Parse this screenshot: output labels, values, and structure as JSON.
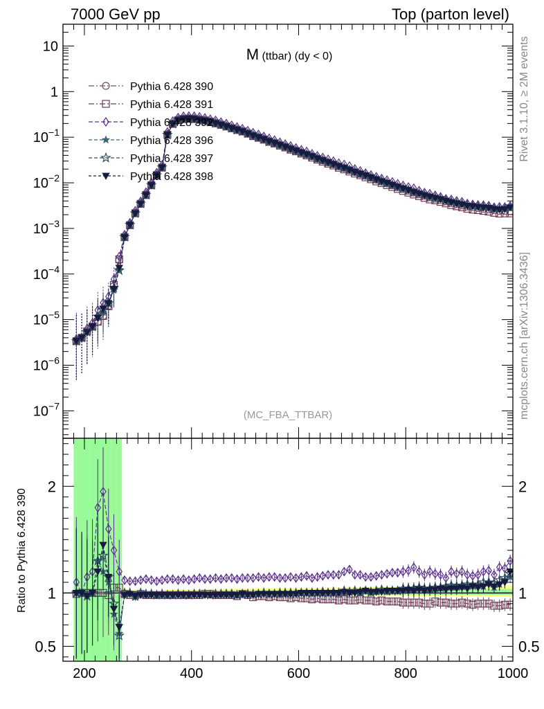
{
  "header": {
    "left": "7000 GeV pp",
    "right": "Top (parton level)"
  },
  "side": {
    "rivet": "Rivet 3.1.10, ≥ 2M events",
    "mcplots": "mcplots.cern.ch [arXiv:1306.3436]"
  },
  "chart_data": [
    {
      "type": "line",
      "title": "M (ttbar) (dy < 0)",
      "analysis": "(MC_FBA_TTBAR)",
      "yscale": "log",
      "xlim": [
        160,
        1000
      ],
      "ylim": [
        2.5e-08,
        30
      ],
      "x_ticks": [
        "200",
        "400",
        "600",
        "800",
        "1000"
      ],
      "y_ticks": [
        {
          "v": 10,
          "m": "10",
          "e": ""
        },
        {
          "v": 1,
          "m": "1",
          "e": ""
        },
        {
          "v": 0.1,
          "m": "10",
          "e": "−1"
        },
        {
          "v": 0.01,
          "m": "10",
          "e": "−2"
        },
        {
          "v": 0.001,
          "m": "10",
          "e": "−3"
        },
        {
          "v": 0.0001,
          "m": "10",
          "e": "−4"
        },
        {
          "v": 1e-05,
          "m": "10",
          "e": "−5"
        },
        {
          "v": 1e-06,
          "m": "10",
          "e": "−6"
        },
        {
          "v": 1e-07,
          "m": "10",
          "e": "−7"
        }
      ],
      "legend_position": "top-left",
      "x": [
        185,
        195,
        205,
        215,
        225,
        235,
        245,
        255,
        265,
        275,
        285,
        295,
        305,
        315,
        325,
        335,
        345,
        355,
        365,
        375,
        385,
        395,
        405,
        415,
        425,
        435,
        445,
        455,
        465,
        475,
        485,
        495,
        505,
        515,
        525,
        535,
        545,
        555,
        565,
        575,
        585,
        595,
        605,
        615,
        625,
        635,
        645,
        655,
        665,
        675,
        685,
        695,
        705,
        715,
        725,
        735,
        745,
        755,
        765,
        775,
        785,
        795,
        805,
        815,
        825,
        835,
        845,
        855,
        865,
        875,
        885,
        895,
        905,
        915,
        925,
        935,
        945,
        955,
        965,
        975,
        985,
        995
      ],
      "reference": [
        3.4e-06,
        4e-06,
        5.5e-06,
        7e-06,
        9e-06,
        1.2e-05,
        2e-05,
        5.5e-05,
        0.0002,
        0.00065,
        0.0012,
        0.0022,
        0.0035,
        0.0055,
        0.009,
        0.015,
        0.022,
        0.115,
        0.2,
        0.24,
        0.255,
        0.26,
        0.255,
        0.245,
        0.235,
        0.22,
        0.205,
        0.19,
        0.175,
        0.16,
        0.148,
        0.135,
        0.122,
        0.11,
        0.1,
        0.091,
        0.082,
        0.075,
        0.068,
        0.062,
        0.056,
        0.051,
        0.046,
        0.042,
        0.038,
        0.034,
        0.031,
        0.028,
        0.0255,
        0.023,
        0.021,
        0.019,
        0.0172,
        0.0156,
        0.0142,
        0.0129,
        0.0117,
        0.0106,
        0.0097,
        0.0088,
        0.008,
        0.0073,
        0.0067,
        0.0061,
        0.0056,
        0.0052,
        0.0048,
        0.0045,
        0.0042,
        0.0039,
        0.0036,
        0.0034,
        0.0032,
        0.003,
        0.0029,
        0.0028,
        0.0027,
        0.0026,
        0.0025,
        0.0024,
        0.0024,
        0.0024
      ],
      "ylabel": "",
      "series": [
        {
          "name": "Pythia 6.428 390",
          "marker": "open-circle",
          "color": "#7a4a66",
          "dash": "8,3,2,3"
        },
        {
          "name": "Pythia 6.428 391",
          "marker": "open-square",
          "color": "#6e3b55",
          "dash": "8,3,2,3"
        },
        {
          "name": "Pythia 6.428 392",
          "marker": "open-diamond",
          "color": "#5a2e8c",
          "dash": "6,3"
        },
        {
          "name": "Pythia 6.428 396",
          "marker": "star",
          "color": "#3d6470",
          "dash": "5,3"
        },
        {
          "name": "Pythia 6.428 397",
          "marker": "open-star",
          "color": "#2d4e63",
          "dash": "5,3"
        },
        {
          "name": "Pythia 6.428 398",
          "marker": "filled-triangle-down",
          "color": "#171b3d",
          "dash": "4,3"
        }
      ]
    },
    {
      "type": "line",
      "ylabel": "Ratio to Pythia 6.428 390",
      "ylim": [
        0.36,
        2.45
      ],
      "y_ticks": [
        {
          "v": 0.5,
          "l": "0.5"
        },
        {
          "v": 1,
          "l": "1"
        },
        {
          "v": 2,
          "l": "2"
        }
      ],
      "x_ticks": [
        "200",
        "400",
        "600",
        "800",
        "1000"
      ],
      "band_colors": {
        "inner": "#98fa98",
        "outer": "#ffff80"
      },
      "ratios": {
        "Pythia 6.428 391": [
          0.99,
          1.0,
          1.0,
          1.0,
          1.0,
          1.0,
          0.98,
          1.05,
          1.05,
          0.99,
          0.98,
          0.98,
          0.99,
          0.98,
          0.98,
          0.98,
          0.98,
          0.98,
          0.98,
          0.98,
          0.98,
          0.98,
          0.98,
          0.98,
          0.99,
          0.99,
          0.98,
          0.98,
          0.98,
          0.98,
          0.97,
          0.99,
          0.98,
          0.96,
          0.97,
          0.97,
          0.96,
          0.97,
          0.96,
          0.96,
          0.95,
          0.96,
          0.95,
          0.95,
          0.94,
          0.95,
          0.94,
          0.94,
          0.94,
          0.93,
          0.94,
          0.93,
          0.93,
          0.94,
          0.93,
          0.93,
          0.92,
          0.93,
          0.92,
          0.92,
          0.92,
          0.91,
          0.91,
          0.91,
          0.91,
          0.9,
          0.9,
          0.92,
          0.91,
          0.91,
          0.9,
          0.9,
          0.91,
          0.9,
          0.89,
          0.9,
          0.9,
          0.9,
          0.88,
          0.88,
          0.89,
          0.89
        ],
        "Pythia 6.428 392": [
          1.1,
          1.0,
          1.15,
          1.2,
          1.8,
          1.95,
          1.6,
          1.4,
          1.2,
          1.12,
          1.11,
          1.11,
          1.12,
          1.13,
          1.12,
          1.11,
          1.12,
          1.13,
          1.13,
          1.12,
          1.13,
          1.12,
          1.13,
          1.14,
          1.13,
          1.13,
          1.14,
          1.13,
          1.14,
          1.14,
          1.13,
          1.14,
          1.14,
          1.14,
          1.15,
          1.14,
          1.15,
          1.15,
          1.14,
          1.14,
          1.15,
          1.14,
          1.15,
          1.16,
          1.14,
          1.15,
          1.16,
          1.17,
          1.17,
          1.17,
          1.2,
          1.22,
          1.17,
          1.17,
          1.15,
          1.15,
          1.16,
          1.17,
          1.18,
          1.19,
          1.19,
          1.2,
          1.21,
          1.24,
          1.2,
          1.17,
          1.2,
          1.18,
          1.17,
          1.14,
          1.2,
          1.18,
          1.2,
          1.17,
          1.16,
          1.17,
          1.2,
          1.21,
          1.17,
          1.24,
          1.23,
          1.3
        ],
        "Pythia 6.428 396": [
          1.0,
          1.0,
          0.97,
          1.0,
          1.3,
          1.2,
          1.1,
          0.8,
          0.62,
          0.98,
          0.99,
          0.96,
          1.0,
          0.98,
          0.99,
          0.98,
          0.98,
          0.98,
          0.98,
          0.99,
          0.99,
          0.98,
          0.99,
          0.99,
          0.99,
          0.99,
          0.98,
          0.99,
          0.99,
          1.0,
          0.98,
          0.98,
          0.99,
          0.99,
          0.99,
          1.0,
          1.0,
          0.99,
          0.99,
          0.99,
          0.99,
          1.0,
          1.0,
          1.0,
          1.0,
          1.0,
          1.0,
          1.01,
          1.0,
          1.0,
          1.0,
          1.01,
          1.02,
          1.0,
          1.02,
          1.0,
          1.01,
          1.02,
          1.01,
          1.02,
          1.02,
          1.02,
          1.03,
          1.03,
          1.05,
          1.03,
          1.04,
          1.04,
          1.05,
          1.06,
          1.06,
          1.07,
          1.06,
          1.07,
          1.08,
          1.07,
          1.06,
          1.1,
          1.05,
          1.08,
          1.12,
          1.15
        ],
        "Pythia 6.428 397": [
          1.0,
          1.0,
          0.97,
          1.0,
          1.3,
          1.35,
          1.15,
          0.9,
          0.6,
          1.0,
          1.0,
          0.97,
          1.0,
          0.99,
          0.99,
          0.98,
          0.99,
          0.98,
          0.98,
          0.99,
          0.98,
          0.98,
          0.99,
          0.99,
          0.99,
          0.98,
          0.99,
          0.99,
          0.99,
          0.99,
          0.98,
          0.99,
          0.99,
          0.99,
          0.99,
          1.0,
          0.99,
          0.99,
          1.0,
          1.0,
          1.0,
          1.0,
          1.0,
          1.0,
          1.0,
          1.0,
          1.01,
          1.0,
          1.01,
          1.0,
          1.02,
          1.01,
          1.02,
          1.01,
          1.02,
          1.01,
          1.02,
          1.03,
          1.02,
          1.02,
          1.02,
          1.04,
          1.04,
          1.04,
          1.05,
          1.04,
          1.04,
          1.05,
          1.05,
          1.06,
          1.07,
          1.06,
          1.07,
          1.08,
          1.07,
          1.08,
          1.1,
          1.1,
          1.09,
          1.12,
          1.14,
          1.18
        ],
        "Pythia 6.428 398": [
          1.0,
          1.0,
          0.97,
          1.0,
          1.2,
          1.45,
          1.15,
          0.85,
          0.68,
          0.98,
          0.99,
          0.97,
          0.98,
          0.98,
          0.98,
          0.98,
          0.98,
          0.98,
          0.98,
          0.98,
          0.98,
          0.98,
          0.98,
          0.98,
          0.98,
          0.98,
          0.98,
          0.98,
          0.98,
          0.98,
          0.98,
          0.99,
          0.98,
          0.98,
          0.99,
          0.99,
          0.99,
          0.99,
          0.99,
          0.99,
          0.99,
          0.99,
          1.0,
          1.0,
          1.0,
          1.0,
          1.0,
          1.0,
          1.0,
          1.0,
          1.01,
          1.0,
          1.0,
          1.01,
          1.02,
          1.01,
          1.01,
          1.01,
          1.02,
          1.02,
          1.02,
          1.02,
          1.03,
          1.02,
          1.03,
          1.02,
          1.03,
          1.03,
          1.04,
          1.03,
          1.04,
          1.04,
          1.05,
          1.04,
          1.06,
          1.05,
          1.06,
          1.08,
          1.06,
          1.08,
          1.1,
          1.2
        ]
      }
    }
  ]
}
